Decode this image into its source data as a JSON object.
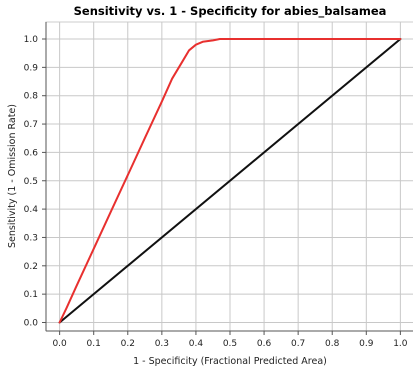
{
  "chart_data": {
    "type": "line",
    "title": "Sensitivity vs. 1 - Specificity for abies_balsamea",
    "xlabel": "1 - Specificity  (Fractional Predicted Area)",
    "ylabel": "Sensitivity  (1 - Omission Rate)",
    "xlim": [
      -0.04,
      1.04
    ],
    "ylim": [
      -0.03,
      1.06
    ],
    "x_ticks": [
      "0.0",
      "0.1",
      "0.2",
      "0.3",
      "0.4",
      "0.5",
      "0.6",
      "0.7",
      "0.8",
      "0.9",
      "1.0"
    ],
    "y_ticks": [
      "0.0",
      "0.1",
      "0.2",
      "0.3",
      "0.4",
      "0.5",
      "0.6",
      "0.7",
      "0.8",
      "0.9",
      "1.0"
    ],
    "grid": true,
    "series": [
      {
        "color": "#e8302f",
        "x": [
          0.0,
          0.02,
          0.05,
          0.1,
          0.15,
          0.2,
          0.25,
          0.3,
          0.33,
          0.36,
          0.38,
          0.4,
          0.42,
          0.45,
          0.47,
          0.5,
          0.6,
          0.7,
          0.8,
          0.9,
          1.0
        ],
        "y": [
          0.0,
          0.05,
          0.13,
          0.26,
          0.39,
          0.52,
          0.65,
          0.78,
          0.86,
          0.92,
          0.96,
          0.98,
          0.99,
          0.995,
          1.0,
          1.0,
          1.0,
          1.0,
          1.0,
          1.0,
          1.0
        ]
      },
      {
        "color": "#111111",
        "x": [
          0.0,
          1.0
        ],
        "y": [
          0.0,
          1.0
        ]
      }
    ]
  }
}
